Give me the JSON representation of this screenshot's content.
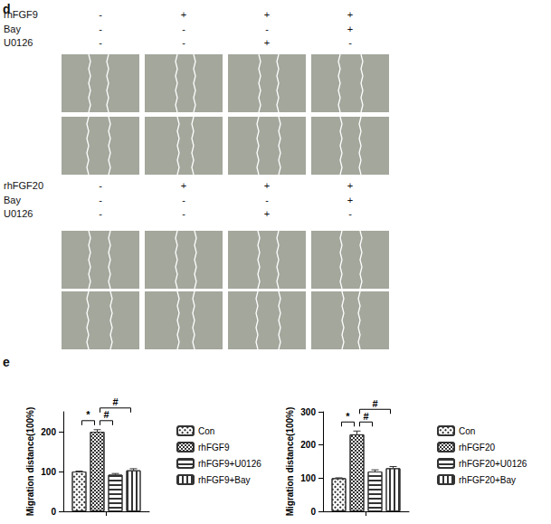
{
  "figure": {
    "panel_d": {
      "label": "d",
      "blocks": [
        {
          "rows": [
            {
              "name": "rhFGF9",
              "signs": [
                "-",
                "+",
                "+",
                "+"
              ]
            },
            {
              "name": "Bay",
              "signs": [
                "-",
                "-",
                "-",
                "+"
              ]
            },
            {
              "name": "U0126",
              "signs": [
                "-",
                "-",
                "+",
                "-"
              ]
            }
          ]
        },
        {
          "rows": [
            {
              "name": "rhFGF20",
              "signs": [
                "-",
                "+",
                "+",
                "+"
              ]
            },
            {
              "name": "Bay",
              "signs": [
                "-",
                "-",
                "-",
                "+"
              ]
            },
            {
              "name": "U0126",
              "signs": [
                "-",
                "-",
                "+",
                "-"
              ]
            }
          ]
        }
      ]
    },
    "panel_e": {
      "label": "e"
    }
  },
  "chart_data": [
    {
      "type": "bar",
      "y_label": "Migration distance(100%)",
      "categories": [
        null
      ],
      "series": [
        {
          "name": "Con",
          "color": "#333333",
          "values": [
            100
          ],
          "errors": [
            1
          ]
        },
        {
          "name": "rhFGF9",
          "color": "#333333",
          "values": [
            200
          ],
          "errors": [
            5
          ]
        },
        {
          "name": "rhFGF9+U0126",
          "color": "#333333",
          "values": [
            92
          ],
          "errors": [
            3
          ]
        },
        {
          "name": "rhFGF9+Bay",
          "color": "#333333",
          "values": [
            103
          ],
          "errors": [
            4
          ]
        }
      ],
      "ylim": [
        0,
        250
      ],
      "yticks": [
        0,
        100,
        200
      ],
      "legend": "right",
      "annotations": [
        {
          "from": "Con",
          "to": "rhFGF9",
          "text": "*"
        },
        {
          "from": "rhFGF9",
          "to": "rhFGF9+U0126",
          "text": "#"
        },
        {
          "from": "rhFGF9",
          "to": "rhFGF9+Bay",
          "text": "#"
        }
      ]
    },
    {
      "type": "bar",
      "y_label": "Migration distance(100%)",
      "categories": [
        null
      ],
      "series": [
        {
          "name": "Con",
          "color": "#333333",
          "values": [
            100
          ],
          "errors": [
            1
          ]
        },
        {
          "name": "rhFGF20",
          "color": "#333333",
          "values": [
            232
          ],
          "errors": [
            10
          ]
        },
        {
          "name": "rhFGF20+U0126",
          "color": "#333333",
          "values": [
            120
          ],
          "errors": [
            5
          ]
        },
        {
          "name": "rhFGF20+Bay",
          "color": "#333333",
          "values": [
            130
          ],
          "errors": [
            5
          ]
        }
      ],
      "ylim": [
        0,
        300
      ],
      "yticks": [
        0,
        100,
        200,
        300
      ],
      "legend": "right",
      "annotations": [
        {
          "from": "Con",
          "to": "rhFGF20",
          "text": "*"
        },
        {
          "from": "rhFGF20",
          "to": "rhFGF20+U0126",
          "text": "#"
        },
        {
          "from": "rhFGF20",
          "to": "rhFGF20+Bay",
          "text": "#"
        }
      ]
    }
  ]
}
